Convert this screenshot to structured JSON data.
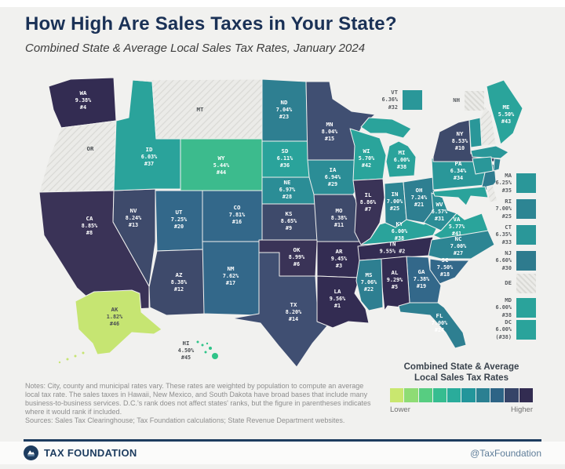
{
  "header": {
    "title": "How High Are Sales Taxes in Your State?",
    "subtitle": "Combined State & Average Local Sales Tax Rates, January 2024"
  },
  "map": {
    "states": [
      {
        "id": "WA",
        "abbr": "WA",
        "rate": "9.38%",
        "rank": "#4",
        "color": "#332c52"
      },
      {
        "id": "OR",
        "abbr": "OR",
        "no_tax": true
      },
      {
        "id": "CA",
        "abbr": "CA",
        "rate": "8.85%",
        "rank": "#8",
        "color": "#3a3357"
      },
      {
        "id": "NV",
        "abbr": "NV",
        "rate": "8.24%",
        "rank": "#13",
        "color": "#3e4a6b"
      },
      {
        "id": "ID",
        "abbr": "ID",
        "rate": "6.03%",
        "rank": "#37",
        "color": "#2aa39b"
      },
      {
        "id": "MT",
        "abbr": "MT",
        "no_tax": true
      },
      {
        "id": "WY",
        "abbr": "WY",
        "rate": "5.44%",
        "rank": "#44",
        "color": "#3cbb8d"
      },
      {
        "id": "UT",
        "abbr": "UT",
        "rate": "7.25%",
        "rank": "#20",
        "color": "#33688a"
      },
      {
        "id": "CO",
        "abbr": "CO",
        "rate": "7.81%",
        "rank": "#16",
        "color": "#33688a"
      },
      {
        "id": "AZ",
        "abbr": "AZ",
        "rate": "8.38%",
        "rank": "#12",
        "color": "#3e4a6b"
      },
      {
        "id": "NM",
        "abbr": "NM",
        "rate": "7.62%",
        "rank": "#17",
        "color": "#33688a"
      },
      {
        "id": "ND",
        "abbr": "ND",
        "rate": "7.04%",
        "rank": "#23",
        "color": "#2e7f91"
      },
      {
        "id": "SD",
        "abbr": "SD",
        "rate": "6.11%",
        "rank": "#36",
        "color": "#2aa39b"
      },
      {
        "id": "NE",
        "abbr": "NE",
        "rate": "6.97%",
        "rank": "#28",
        "color": "#2b8d96"
      },
      {
        "id": "KS",
        "abbr": "KS",
        "rate": "8.65%",
        "rank": "#9",
        "color": "#3e4a6b"
      },
      {
        "id": "OK",
        "abbr": "OK",
        "rate": "8.99%",
        "rank": "#6",
        "color": "#3a3357"
      },
      {
        "id": "TX",
        "abbr": "TX",
        "rate": "8.20%",
        "rank": "#14",
        "color": "#404f72"
      },
      {
        "id": "MN",
        "abbr": "MN",
        "rate": "8.04%",
        "rank": "#15",
        "color": "#404f72"
      },
      {
        "id": "IA",
        "abbr": "IA",
        "rate": "6.94%",
        "rank": "#29",
        "color": "#2b8d96"
      },
      {
        "id": "MO",
        "abbr": "MO",
        "rate": "8.38%",
        "rank": "#11",
        "color": "#3e4a6b"
      },
      {
        "id": "AR",
        "abbr": "AR",
        "rate": "9.45%",
        "rank": "#3",
        "color": "#332c52"
      },
      {
        "id": "LA",
        "abbr": "LA",
        "rate": "9.56%",
        "rank": "#1",
        "color": "#332c52"
      },
      {
        "id": "WI",
        "abbr": "WI",
        "rate": "5.70%",
        "rank": "#42",
        "color": "#2aa49b"
      },
      {
        "id": "MI",
        "abbr": "MI",
        "rate": "6.00%",
        "rank": "#38",
        "color": "#2aa39b"
      },
      {
        "id": "IL",
        "abbr": "IL",
        "rate": "8.86%",
        "rank": "#7",
        "color": "#3a3357"
      },
      {
        "id": "IN",
        "abbr": "IN",
        "rate": "7.00%",
        "rank": "#25",
        "color": "#2d8593"
      },
      {
        "id": "OH",
        "abbr": "OH",
        "rate": "7.24%",
        "rank": "#21",
        "color": "#2e7f91"
      },
      {
        "id": "KY",
        "abbr": "KY",
        "rate": "6.00%",
        "rank": "#38",
        "color": "#2aa39b"
      },
      {
        "id": "TN",
        "abbr": "TN",
        "rate": "9.55%",
        "rank": "#2",
        "color": "#332c52",
        "wide": true
      },
      {
        "id": "WV",
        "abbr": "WV",
        "rate": "6.57%",
        "rank": "#31",
        "color": "#2b8d96"
      },
      {
        "id": "VA",
        "abbr": "VA",
        "rate": "5.77%",
        "rank": "#41",
        "color": "#2aa49b"
      },
      {
        "id": "NC",
        "abbr": "NC",
        "rate": "7.00%",
        "rank": "#27",
        "color": "#2d8593"
      },
      {
        "id": "SC",
        "abbr": "SC",
        "rate": "7.50%",
        "rank": "#18",
        "color": "#33688a"
      },
      {
        "id": "GA",
        "abbr": "GA",
        "rate": "7.38%",
        "rank": "#19",
        "color": "#33688a"
      },
      {
        "id": "AL",
        "abbr": "AL",
        "rate": "9.29%",
        "rank": "#5",
        "color": "#332c52"
      },
      {
        "id": "MS",
        "abbr": "MS",
        "rate": "7.06%",
        "rank": "#22",
        "color": "#2e7f91"
      },
      {
        "id": "FL",
        "abbr": "FL",
        "rate": "7.00%",
        "rank": "#24",
        "color": "#2e7f91"
      },
      {
        "id": "PA",
        "abbr": "PA",
        "rate": "6.34%",
        "rank": "#34",
        "color": "#2a9799"
      },
      {
        "id": "NY",
        "abbr": "NY",
        "rate": "8.53%",
        "rank": "#10",
        "color": "#3e4a6b"
      },
      {
        "id": "ME",
        "abbr": "ME",
        "rate": "5.50%",
        "rank": "#43",
        "color": "#2aa49b"
      },
      {
        "id": "AK",
        "abbr": "AK",
        "rate": "1.82%",
        "rank": "#46",
        "color": "#c6e572",
        "dark_text": true
      },
      {
        "id": "HI",
        "abbr": "HI",
        "rate": "4.50%",
        "rank": "#45",
        "color": "#2fc489",
        "dark_text": true
      }
    ],
    "callouts": [
      {
        "id": "VT",
        "abbr": "VT",
        "rate": "6.36%",
        "rank": "#32",
        "color": "#2a9799"
      },
      {
        "id": "NH",
        "abbr": "NH",
        "no_tax": true
      },
      {
        "id": "MA",
        "abbr": "MA",
        "rate": "6.25%",
        "rank": "#35",
        "color": "#2a9799"
      },
      {
        "id": "RI",
        "abbr": "RI",
        "rate": "7.00%",
        "rank": "#25",
        "color": "#2d8593"
      },
      {
        "id": "CT",
        "abbr": "CT",
        "rate": "6.35%",
        "rank": "#33",
        "color": "#2a9799"
      },
      {
        "id": "NJ",
        "abbr": "NJ",
        "rate": "6.60%",
        "rank": "#30",
        "color": "#2e7b8e"
      },
      {
        "id": "DE",
        "abbr": "DE",
        "no_tax": true
      },
      {
        "id": "MD",
        "abbr": "MD",
        "rate": "6.00%",
        "rank": "#38",
        "color": "#2aa39b"
      },
      {
        "id": "DC",
        "abbr": "DC",
        "rate": "6.00%",
        "rank": "(#38)",
        "color": "#2aa39b"
      }
    ],
    "no_tax_fill": "#ebebe8"
  },
  "legend": {
    "title_line1": "Combined State & Average",
    "title_line2": "Local Sales Tax Rates",
    "lower_label": "Lower",
    "higher_label": "Higher",
    "colors": [
      "#c9e76f",
      "#8edc74",
      "#57cd81",
      "#36bd90",
      "#2aac9b",
      "#23969b",
      "#2b8092",
      "#2d6486",
      "#364468",
      "#322c51"
    ]
  },
  "notes": {
    "body": "Notes: City, county and municipal rates vary. These rates are weighted by population to compute an average local tax rate. The sales taxes in Hawaii, New Mexico, and South Dakota have broad bases that include many business-to-business services. D.C.'s rank does not affect states' ranks, but the figure in parentheses indicates where it would rank if included.",
    "sources": "Sources: Sales Tax Clearinghouse; Tax Foundation calculations; State Revenue Department websites."
  },
  "footer": {
    "brand": "TAX FOUNDATION",
    "handle": "@TaxFoundation"
  }
}
